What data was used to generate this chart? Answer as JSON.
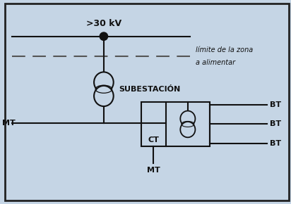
{
  "bg_color": "#c5d5e5",
  "border_color": "#222222",
  "line_color": "#111111",
  "text_color": "#111111",
  "dashed_color": "#555555",
  "title_voltage": ">30 kV",
  "label_limit_line1": "límite de la zona",
  "label_limit_line2": "a alimentar",
  "label_subestacion": "SUBESTACIÓN",
  "label_ct": "CT",
  "label_mt_left": "MT",
  "label_mt_bottom": "MT",
  "label_bt1": "BT",
  "label_bt2": "BT",
  "label_bt3": "BT"
}
